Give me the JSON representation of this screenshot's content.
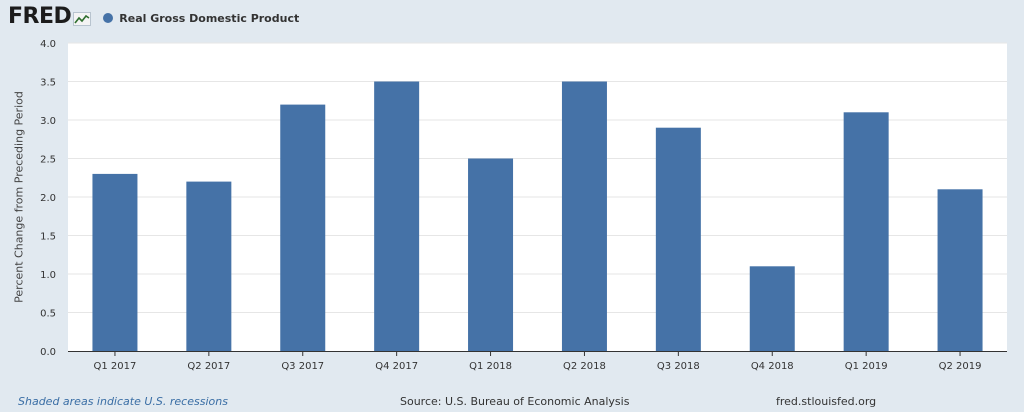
{
  "header": {
    "logo_text": "FRED",
    "logo_icon": "line-chart-icon"
  },
  "legend": {
    "label": "Real Gross Domestic Product",
    "color": "#4572a7"
  },
  "footer": {
    "recession_note": "Shaded areas indicate U.S. recessions",
    "source": "Source: U.S. Bureau of Economic Analysis",
    "site": "fred.stlouisfed.org"
  },
  "chart_data": {
    "type": "bar",
    "title": "",
    "xlabel": "",
    "ylabel": "Percent Change from Preceding Period",
    "categories": [
      "Q1 2017",
      "Q2 2017",
      "Q3 2017",
      "Q4 2017",
      "Q1 2018",
      "Q2 2018",
      "Q3 2018",
      "Q4 2018",
      "Q1 2019",
      "Q2 2019"
    ],
    "series": [
      {
        "name": "Real Gross Domestic Product",
        "values": [
          2.3,
          2.2,
          3.2,
          3.5,
          2.5,
          3.5,
          2.9,
          1.1,
          3.1,
          2.1
        ]
      }
    ],
    "ylim": [
      0,
      4.0
    ],
    "yticks": [
      "0.0",
      "0.5",
      "1.0",
      "1.5",
      "2.0",
      "2.5",
      "3.0",
      "3.5",
      "4.0"
    ],
    "grid": true,
    "legend_position": "top-left",
    "bar_color": "#4572a7"
  }
}
